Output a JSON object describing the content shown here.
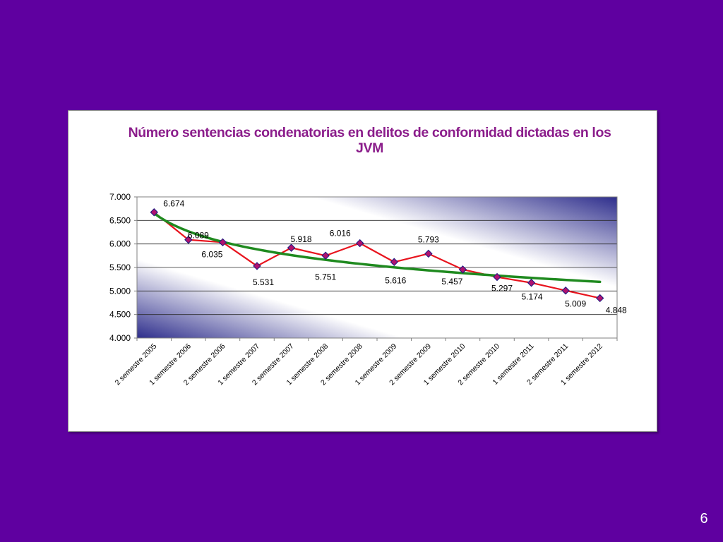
{
  "slide": {
    "page_number": "6"
  },
  "chart_data": {
    "type": "line",
    "title_line1": "Número sentencias condenatorias en delitos de conformidad dictadas en los",
    "title_line2": "JVM",
    "categories": [
      "2 semestre 2005",
      "1 semestre 2006",
      "2 semestre 2006",
      "1 semestre 2007",
      "2 semestre 2007",
      "1 semestre 2008",
      "2 semestre 2008",
      "1 semestre 2009",
      "2 semestre 2009",
      "1 semestre 2010",
      "2 semestre 2010",
      "1 semestre 2011",
      "2 semestre 2011",
      "1 semestre 2012"
    ],
    "values": [
      6674,
      6089,
      6035,
      5531,
      5918,
      5751,
      6016,
      5616,
      5793,
      5457,
      5297,
      5174,
      5009,
      4848
    ],
    "value_labels": [
      "6.674",
      "6.089",
      "6.035",
      "5.531",
      "5.918",
      "5.751",
      "6.016",
      "5.616",
      "5.793",
      "5.457",
      "5.297",
      "5.174",
      "5.009",
      "4.848"
    ],
    "ylim": [
      4000,
      7000
    ],
    "yticks": [
      4000,
      4500,
      5000,
      5500,
      6000,
      6500,
      7000
    ],
    "ytick_labels": [
      "4.000",
      "4.500",
      "5.000",
      "5.500",
      "6.000",
      "6.500",
      "7.000"
    ],
    "grid": true,
    "trendline": "logarithmic",
    "colors": {
      "series": "#e8141e",
      "marker": "#b0126f",
      "trendline": "#1f8a1f",
      "title": "#8b1d8b",
      "plot_dark": "#2e2e8c",
      "background": "#5f00a0"
    }
  }
}
